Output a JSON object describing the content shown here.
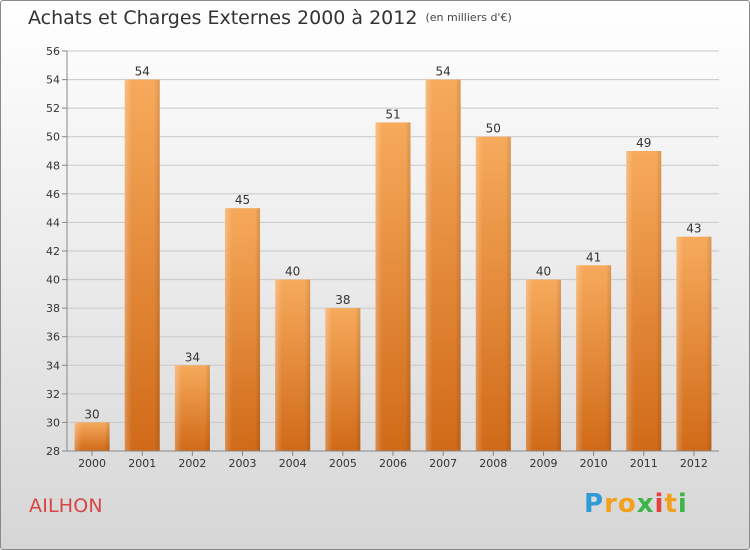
{
  "header": {
    "title": "Achats et Charges Externes 2000 à 2012",
    "subtitle": "(en milliers d'€)"
  },
  "footer": {
    "commune": "AILHON",
    "logo_text": "Proxiti"
  },
  "colors": {
    "bar_light": "#f6a85a",
    "bar_dark": "#d4701e",
    "commune": "#d94444"
  },
  "chart_data": {
    "type": "bar",
    "title": "Achats et Charges Externes 2000 à 2012",
    "subtitle": "(en milliers d'€)",
    "categories": [
      "2000",
      "2001",
      "2002",
      "2003",
      "2004",
      "2005",
      "2006",
      "2007",
      "2008",
      "2009",
      "2010",
      "2011",
      "2012"
    ],
    "values": [
      30,
      54,
      34,
      45,
      40,
      38,
      51,
      54,
      50,
      40,
      41,
      49,
      43
    ],
    "ylim": [
      28,
      56
    ],
    "yticks": [
      28,
      30,
      32,
      34,
      36,
      38,
      40,
      42,
      44,
      46,
      48,
      50,
      52,
      54,
      56
    ],
    "xlabel": "",
    "ylabel": "",
    "grid": true,
    "legend": "none"
  }
}
